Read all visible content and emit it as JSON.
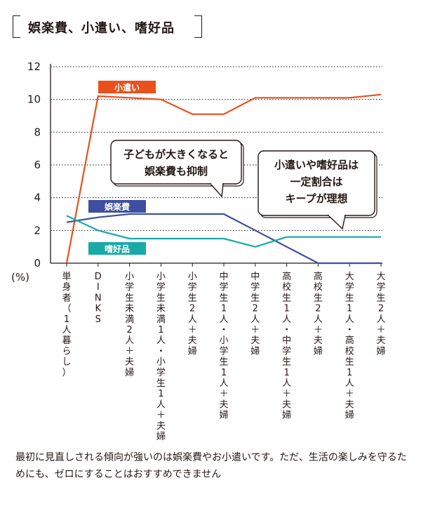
{
  "title": "娯楽費、小遣い、嗜好品",
  "caption": "最初に見直しされる傾向が強いのは娯楽費やお小遣いです。ただ、生活の楽しみを守るためにも、ゼロにすることはおすすめできません",
  "chart_data": {
    "type": "line",
    "title": "娯楽費、小遣い、嗜好品",
    "ylabel": "(%)",
    "ylim": [
      0,
      12
    ],
    "yticks": [
      0,
      2,
      4,
      6,
      8,
      10,
      12
    ],
    "grid": true,
    "categories": [
      "単身者（1人暮らし）",
      "DINKS",
      "小学生未満2人＋夫婦",
      "小学生未満1人・小学生1人＋夫婦",
      "小学生2人＋夫婦",
      "中学生1人・小学生1人＋夫婦",
      "中学生2人＋夫婦",
      "高校生1人・中学生1人＋夫婦",
      "高校生2人＋夫婦",
      "大学生1人・高校生1人＋夫婦",
      "大学生2人＋夫婦"
    ],
    "series": [
      {
        "name": "小遣い",
        "color": "#e8501e",
        "values": [
          0,
          10.2,
          10.1,
          10.0,
          9.1,
          9.1,
          10.1,
          10.1,
          10.1,
          10.1,
          10.3
        ]
      },
      {
        "name": "娯楽費",
        "color": "#3d4fa0",
        "values": [
          2.5,
          2.8,
          3.0,
          3.0,
          3.0,
          3.0,
          2.0,
          1.0,
          0,
          0,
          0
        ]
      },
      {
        "name": "嗜好品",
        "color": "#19aaa8",
        "values": [
          2.9,
          2.0,
          1.5,
          1.5,
          1.5,
          1.5,
          1.0,
          1.6,
          1.6,
          1.6,
          1.6
        ]
      }
    ],
    "annotations": [
      {
        "lines": [
          "子どもが大きくなると",
          "娯楽費も抑制"
        ]
      },
      {
        "lines": [
          "小遣いや嗜好品は",
          "一定割合は",
          "キープが理想"
        ]
      }
    ]
  }
}
